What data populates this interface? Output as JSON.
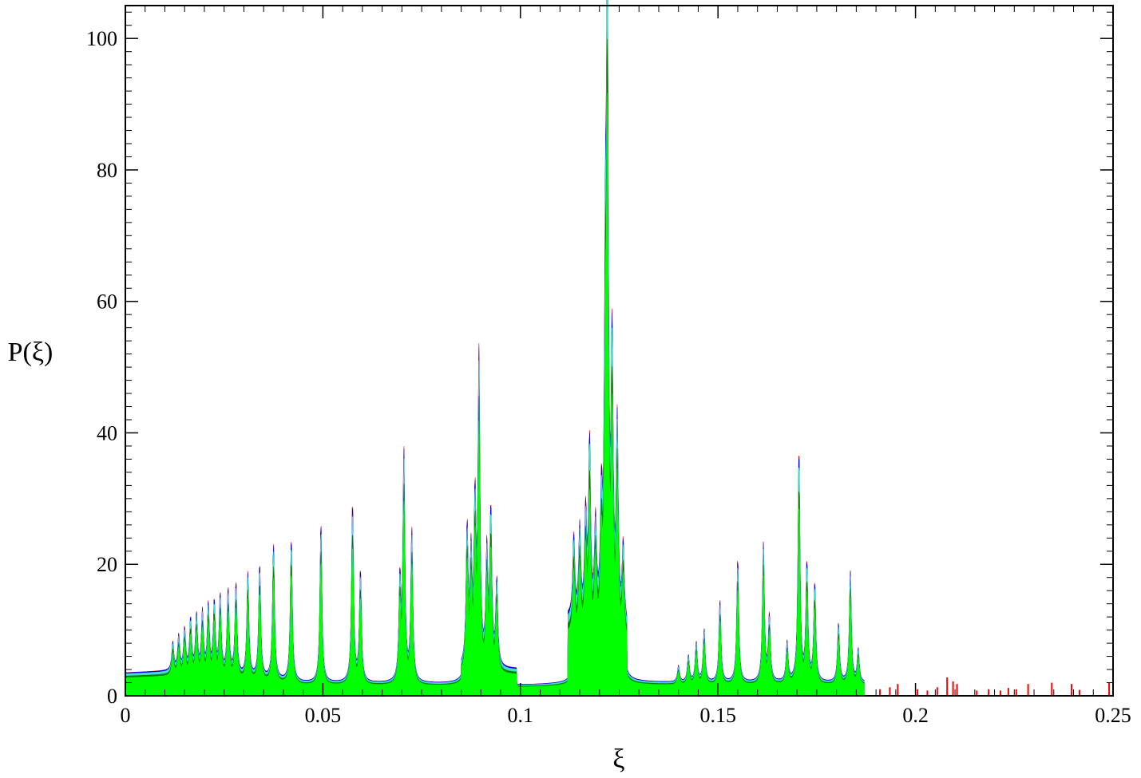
{
  "chart_data": {
    "type": "area",
    "title": "",
    "xlabel": "ξ",
    "ylabel": "P(ξ)",
    "xlim": [
      0,
      0.25
    ],
    "ylim": [
      0,
      105
    ],
    "x_ticks": [
      0,
      0.05,
      0.1,
      0.15,
      0.2,
      0.25
    ],
    "x_tick_labels": [
      "0",
      "0.05",
      "0.1",
      "0.15",
      "0.2",
      "0.25"
    ],
    "y_ticks": [
      0,
      20,
      40,
      60,
      80,
      100
    ],
    "y_tick_labels": [
      "0",
      "20",
      "40",
      "60",
      "80",
      "100"
    ],
    "grid": false,
    "series_colors": [
      "#ff0000",
      "#0000ff",
      "#40e0d0",
      "#008000",
      "#00ff00"
    ],
    "baseline_segments": [
      {
        "x0": 0.0,
        "x1": 0.013,
        "y0": 3.5,
        "y1": 3.8
      },
      {
        "x0": 0.013,
        "x1": 0.045,
        "y0": 3.8,
        "y1": 2.0
      },
      {
        "x0": 0.045,
        "x1": 0.085,
        "y0": 2.0,
        "y1": 1.8
      },
      {
        "x0": 0.085,
        "x1": 0.099,
        "y0": 4.0,
        "y1": 4.0
      },
      {
        "x0": 0.099,
        "x1": 0.112,
        "y0": 1.5,
        "y1": 1.8
      },
      {
        "x0": 0.112,
        "x1": 0.127,
        "y0": 12.0,
        "y1": 10.0
      },
      {
        "x0": 0.127,
        "x1": 0.19,
        "y0": 2.0,
        "y1": 2.0
      }
    ],
    "peaks": [
      {
        "x": 0.012,
        "y": 8
      },
      {
        "x": 0.0135,
        "y": 9
      },
      {
        "x": 0.015,
        "y": 10
      },
      {
        "x": 0.0165,
        "y": 11.5
      },
      {
        "x": 0.018,
        "y": 12
      },
      {
        "x": 0.0195,
        "y": 12.5
      },
      {
        "x": 0.021,
        "y": 13.5
      },
      {
        "x": 0.0225,
        "y": 14
      },
      {
        "x": 0.024,
        "y": 15
      },
      {
        "x": 0.026,
        "y": 16
      },
      {
        "x": 0.028,
        "y": 17
      },
      {
        "x": 0.031,
        "y": 18.5
      },
      {
        "x": 0.034,
        "y": 20
      },
      {
        "x": 0.0375,
        "y": 23
      },
      {
        "x": 0.042,
        "y": 24
      },
      {
        "x": 0.0495,
        "y": 26.5
      },
      {
        "x": 0.0575,
        "y": 29.5
      },
      {
        "x": 0.0595,
        "y": 19
      },
      {
        "x": 0.0695,
        "y": 17
      },
      {
        "x": 0.0705,
        "y": 36.5
      },
      {
        "x": 0.0725,
        "y": 25
      },
      {
        "x": 0.0865,
        "y": 25
      },
      {
        "x": 0.0875,
        "y": 20
      },
      {
        "x": 0.0885,
        "y": 28
      },
      {
        "x": 0.0895,
        "y": 50.5
      },
      {
        "x": 0.0915,
        "y": 21
      },
      {
        "x": 0.0925,
        "y": 27.5
      },
      {
        "x": 0.094,
        "y": 17
      },
      {
        "x": 0.1135,
        "y": 24
      },
      {
        "x": 0.115,
        "y": 25
      },
      {
        "x": 0.1165,
        "y": 27
      },
      {
        "x": 0.1175,
        "y": 38
      },
      {
        "x": 0.119,
        "y": 25
      },
      {
        "x": 0.1205,
        "y": 27
      },
      {
        "x": 0.1215,
        "y": 56
      },
      {
        "x": 0.122,
        "y": 103
      },
      {
        "x": 0.1232,
        "y": 51
      },
      {
        "x": 0.1245,
        "y": 40
      },
      {
        "x": 0.126,
        "y": 22
      },
      {
        "x": 0.14,
        "y": 4.5
      },
      {
        "x": 0.1425,
        "y": 6
      },
      {
        "x": 0.1445,
        "y": 8
      },
      {
        "x": 0.1465,
        "y": 10
      },
      {
        "x": 0.1505,
        "y": 14.5
      },
      {
        "x": 0.155,
        "y": 21
      },
      {
        "x": 0.1615,
        "y": 23
      },
      {
        "x": 0.163,
        "y": 12
      },
      {
        "x": 0.1675,
        "y": 8
      },
      {
        "x": 0.1705,
        "y": 37.5
      },
      {
        "x": 0.1725,
        "y": 20
      },
      {
        "x": 0.1745,
        "y": 17
      },
      {
        "x": 0.1805,
        "y": 11
      },
      {
        "x": 0.1835,
        "y": 19
      },
      {
        "x": 0.1855,
        "y": 7
      }
    ],
    "red_spikes": [
      {
        "x": 0.191,
        "y": 1.0
      },
      {
        "x": 0.1935,
        "y": 1.3
      },
      {
        "x": 0.1955,
        "y": 1.8
      },
      {
        "x": 0.2005,
        "y": 1.0
      },
      {
        "x": 0.203,
        "y": 0.8
      },
      {
        "x": 0.2055,
        "y": 1.3
      },
      {
        "x": 0.208,
        "y": 2.8
      },
      {
        "x": 0.2095,
        "y": 2.2
      },
      {
        "x": 0.2105,
        "y": 1.8
      },
      {
        "x": 0.2155,
        "y": 0.8
      },
      {
        "x": 0.2185,
        "y": 1.0
      },
      {
        "x": 0.2215,
        "y": 0.8
      },
      {
        "x": 0.2235,
        "y": 1.2
      },
      {
        "x": 0.2255,
        "y": 1.0
      },
      {
        "x": 0.2285,
        "y": 1.8
      },
      {
        "x": 0.2345,
        "y": 2.0
      },
      {
        "x": 0.2395,
        "y": 1.8
      },
      {
        "x": 0.2415,
        "y": 0.9
      },
      {
        "x": 0.249,
        "y": 2.0
      }
    ]
  }
}
